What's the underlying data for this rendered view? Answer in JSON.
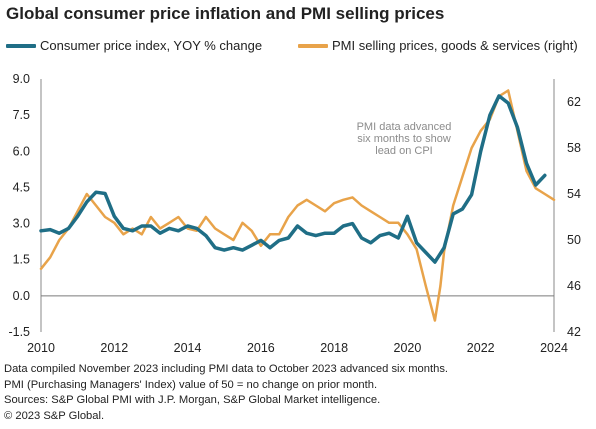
{
  "chart_data": {
    "type": "line",
    "title": "Global consumer price inflation and PMI selling prices",
    "legend_placement": "top",
    "grid": false,
    "x_range": [
      2010,
      2024
    ],
    "x_ticks": [
      "2010",
      "2012",
      "2014",
      "2016",
      "2018",
      "2020",
      "2022",
      "2024"
    ],
    "y_left_range": [
      -1.5,
      9.0
    ],
    "y_left_ticks": [
      "9.0",
      "7.5",
      "6.0",
      "4.5",
      "3.0",
      "1.5",
      "0.0",
      "-1.5"
    ],
    "y_right_range": [
      42,
      64
    ],
    "y_right_ticks": [
      "62",
      "58",
      "54",
      "50",
      "46",
      "42"
    ],
    "annotation": [
      "PMI data advanced",
      "six months to show",
      "lead on CPI"
    ],
    "colors": {
      "cpi": "#1f6e86",
      "pmi": "#e8a34a",
      "zero_line": "#7a7a7a"
    },
    "series": [
      {
        "name": "Consumer price index, YOY % change",
        "axis": "left",
        "x": [
          2010.0,
          2010.25,
          2010.5,
          2010.75,
          2011.0,
          2011.25,
          2011.5,
          2011.75,
          2012.0,
          2012.25,
          2012.5,
          2012.75,
          2013.0,
          2013.25,
          2013.5,
          2013.75,
          2014.0,
          2014.25,
          2014.5,
          2014.75,
          2015.0,
          2015.25,
          2015.5,
          2015.75,
          2016.0,
          2016.25,
          2016.5,
          2016.75,
          2017.0,
          2017.25,
          2017.5,
          2017.75,
          2018.0,
          2018.25,
          2018.5,
          2018.75,
          2019.0,
          2019.25,
          2019.5,
          2019.75,
          2020.0,
          2020.25,
          2020.5,
          2020.75,
          2021.0,
          2021.25,
          2021.5,
          2021.75,
          2022.0,
          2022.25,
          2022.5,
          2022.75,
          2023.0,
          2023.25,
          2023.5,
          2023.75
        ],
        "values": [
          2.7,
          2.75,
          2.6,
          2.8,
          3.3,
          3.9,
          4.3,
          4.25,
          3.3,
          2.8,
          2.7,
          2.9,
          2.9,
          2.6,
          2.8,
          2.7,
          2.9,
          2.8,
          2.5,
          2.0,
          1.9,
          2.0,
          1.9,
          2.1,
          2.3,
          2.0,
          2.3,
          2.4,
          2.9,
          2.6,
          2.5,
          2.6,
          2.6,
          2.9,
          3.0,
          2.4,
          2.2,
          2.5,
          2.6,
          2.4,
          3.3,
          2.2,
          1.8,
          1.4,
          2.0,
          3.4,
          3.6,
          4.2,
          6.0,
          7.5,
          8.3,
          8.0,
          7.0,
          5.5,
          4.6,
          5.0
        ]
      },
      {
        "name": "PMI selling prices, goods & services (right)",
        "axis": "right",
        "x": [
          2010.0,
          2010.25,
          2010.5,
          2010.75,
          2011.0,
          2011.25,
          2011.5,
          2011.75,
          2012.0,
          2012.25,
          2012.5,
          2012.75,
          2013.0,
          2013.25,
          2013.5,
          2013.75,
          2014.0,
          2014.25,
          2014.5,
          2014.75,
          2015.0,
          2015.25,
          2015.5,
          2015.75,
          2016.0,
          2016.25,
          2016.5,
          2016.75,
          2017.0,
          2017.25,
          2017.5,
          2017.75,
          2018.0,
          2018.25,
          2018.5,
          2018.75,
          2019.0,
          2019.25,
          2019.5,
          2019.75,
          2020.0,
          2020.25,
          2020.5,
          2020.75,
          2020.9,
          2021.0,
          2021.25,
          2021.5,
          2021.75,
          2022.0,
          2022.25,
          2022.5,
          2022.75,
          2023.0,
          2023.25,
          2023.5,
          2023.75,
          2024.0
        ],
        "values": [
          47.5,
          48.5,
          50.0,
          51.0,
          52.5,
          54.0,
          53.0,
          52.0,
          51.5,
          50.5,
          51.0,
          50.5,
          52.0,
          51.0,
          51.5,
          52.0,
          51.0,
          50.8,
          52.0,
          51.0,
          50.5,
          50.0,
          51.5,
          50.8,
          49.5,
          50.5,
          50.5,
          52.0,
          53.0,
          53.5,
          53.0,
          52.5,
          53.2,
          53.5,
          53.7,
          53.0,
          52.5,
          52.0,
          51.5,
          51.5,
          50.5,
          49.2,
          46.0,
          43.0,
          46.0,
          49.0,
          53.0,
          55.5,
          58.0,
          59.5,
          60.5,
          62.5,
          63.0,
          59.5,
          56.0,
          54.5,
          54.0,
          53.5
        ]
      }
    ]
  },
  "footnotes": [
    "Data compiled November 2023 including PMI data to October 2023 advanced six months.",
    "PMI (Purchasing Managers' Index) value of 50 = no change on prior month.",
    "Sources: S&P Global PMI with J.P. Morgan, S&P Global Market intelligence.",
    "© 2023 S&P Global."
  ]
}
